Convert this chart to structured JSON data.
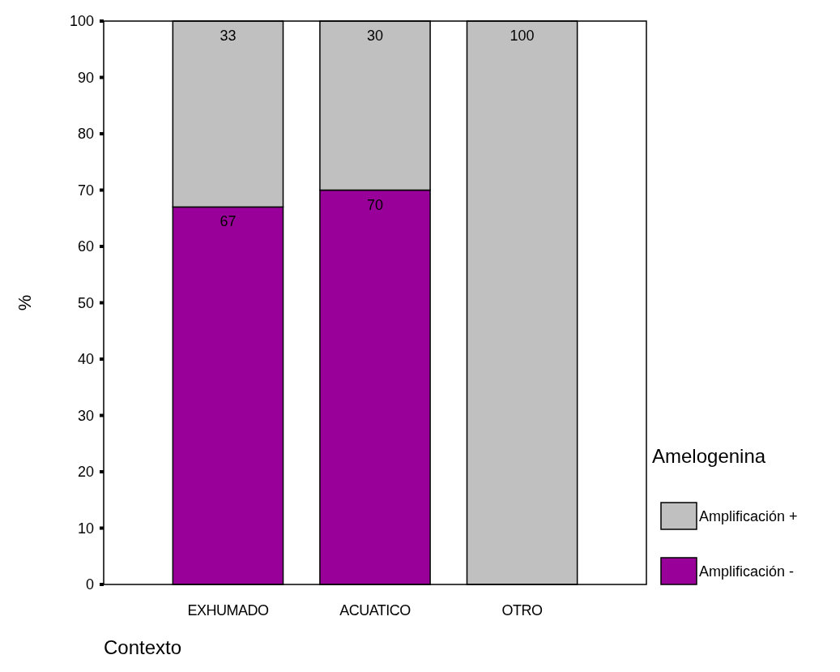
{
  "chart_data": {
    "type": "bar",
    "stacked": true,
    "xlabel": "Contexto",
    "ylabel": "%",
    "legend_title": "Amelogenina",
    "legend": "right",
    "data_labels": true,
    "categories": [
      "EXHUMADO",
      "ACUATICO",
      "OTRO"
    ],
    "ylim": [
      0,
      100
    ],
    "yticks": [
      0,
      10,
      20,
      30,
      40,
      50,
      60,
      70,
      80,
      90,
      100
    ],
    "series": [
      {
        "name": "Amplificación -",
        "color": "#990099",
        "values": [
          67,
          70,
          null
        ]
      },
      {
        "name": "Amplificación +",
        "color": "#c0c0c0",
        "values": [
          33,
          30,
          100
        ]
      }
    ]
  }
}
